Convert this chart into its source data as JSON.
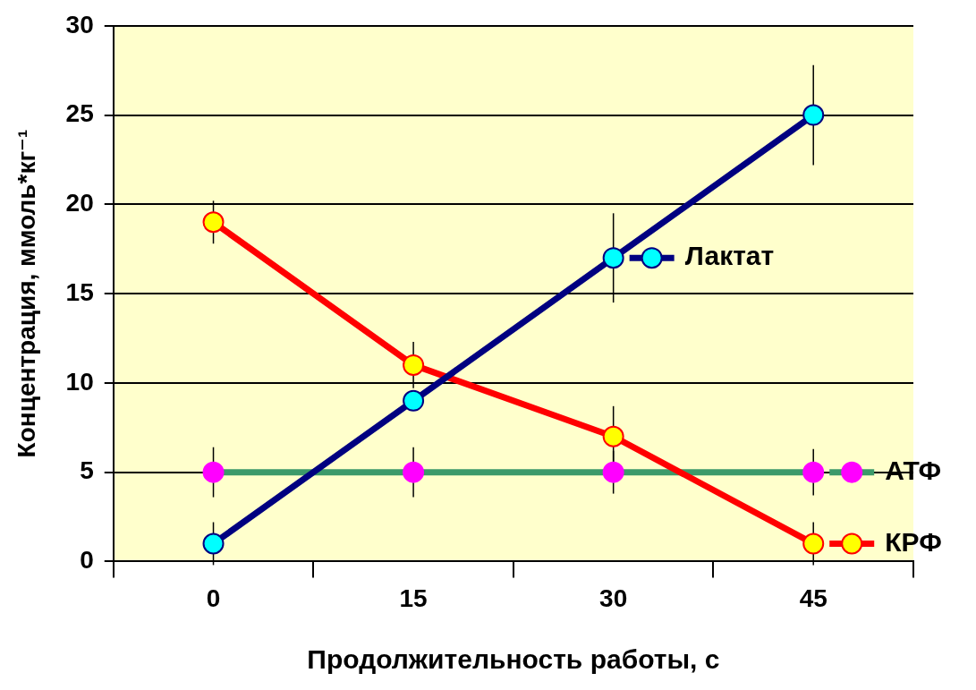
{
  "chart_data": {
    "type": "line",
    "xlabel": "Продолжительность работы, с",
    "ylabel": "Концентрация, ммоль*кг⁻¹",
    "categories": [
      "0",
      "15",
      "30",
      "45"
    ],
    "series": [
      {
        "name": "Лактат",
        "color": "#000080",
        "colors": [
          "#00ffff",
          "#00ffff",
          "#00ffff",
          "#00ffff"
        ],
        "values": [
          1,
          9,
          17,
          25
        ],
        "errors": [
          1.2,
          null,
          2.5,
          2.8
        ]
      },
      {
        "name": "КРФ",
        "color": "#ff0000",
        "colors": [
          "#ffff00",
          "#ffff00",
          "#ffff00",
          "#ffff00"
        ],
        "values": [
          19,
          11,
          7,
          1
        ],
        "errors": [
          1.2,
          1.3,
          1.7,
          1.2
        ]
      },
      {
        "name": "АТФ",
        "color": "#3c9a6a",
        "colors": [
          "#ff00ff",
          "#ff00ff",
          "#ff00ff",
          "#ff00ff"
        ],
        "values": [
          5,
          5,
          5,
          5
        ],
        "errors": [
          1.4,
          1.4,
          1.2,
          1.3
        ]
      }
    ],
    "ylim": [
      0,
      30
    ],
    "yticks": [
      0,
      5,
      10,
      15,
      20,
      25,
      30
    ],
    "grid": "y",
    "legend": "right",
    "marker": "circle",
    "line_style": "solid"
  }
}
